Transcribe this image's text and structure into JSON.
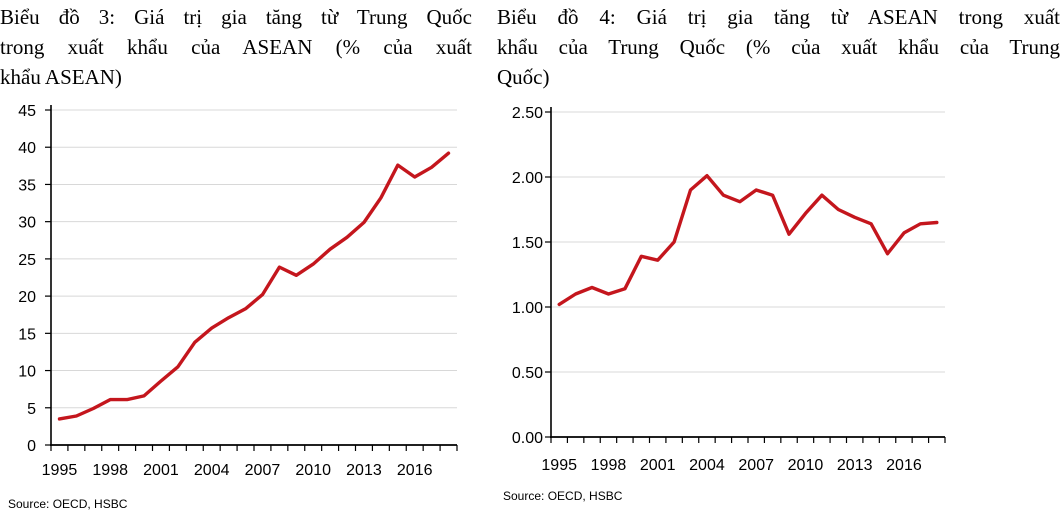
{
  "page": {
    "background": "#ffffff"
  },
  "chart_data": [
    {
      "type": "line",
      "title": "Biểu đồ 3: Giá trị gia tăng từ Trung Quốc trong xuất khẩu của ASEAN (% của xuất khẩu ASEAN)",
      "title_lines": [
        "Biểu đồ 3: Giá trị gia tăng từ Trung Quốc",
        "trong xuất khẩu của ASEAN (% của xuất",
        "khẩu ASEAN)"
      ],
      "source": "Source: OECD, HSBC",
      "x": [
        1995,
        1996,
        1997,
        1998,
        1999,
        2000,
        2001,
        2002,
        2003,
        2004,
        2005,
        2006,
        2007,
        2008,
        2009,
        2010,
        2011,
        2012,
        2013,
        2014,
        2015,
        2016,
        2017,
        2018
      ],
      "series": [
        {
          "name": "",
          "values": [
            3.5,
            3.9,
            4.9,
            6.1,
            6.1,
            6.6,
            8.6,
            10.5,
            13.8,
            15.7,
            17.1,
            18.3,
            20.2,
            23.9,
            22.8,
            24.3,
            26.3,
            27.9,
            29.9,
            33.2,
            37.6,
            36.0,
            37.3,
            39.2
          ]
        }
      ],
      "xlabel": "",
      "ylabel": "",
      "ylim": [
        0,
        45
      ],
      "ytick_step": 5,
      "ytick_labels": [
        "45",
        "40",
        "35",
        "30",
        "25",
        "20",
        "15",
        "10",
        "5",
        "0"
      ],
      "xtick_labels": [
        "1995",
        "1998",
        "2001",
        "2004",
        "2007",
        "2010",
        "2013",
        "2016"
      ],
      "grid": true,
      "legend": false,
      "line_color": "#C4161D",
      "grid_color": "#D8D8D8",
      "axis_color": "#000000"
    },
    {
      "type": "line",
      "title": "Biểu đồ 4: Giá trị gia tăng từ ASEAN trong xuất khẩu của Trung Quốc (% của xuất khẩu của Trung Quốc)",
      "title_lines": [
        "Biểu đồ 4: Giá trị gia tăng từ ASEAN trong xuất",
        "khẩu của Trung Quốc (% của xuất khẩu của Trung",
        "Quốc)"
      ],
      "source": "Source: OECD, HSBC",
      "x": [
        1995,
        1996,
        1997,
        1998,
        1999,
        2000,
        2001,
        2002,
        2003,
        2004,
        2005,
        2006,
        2007,
        2008,
        2009,
        2010,
        2011,
        2012,
        2013,
        2014,
        2015,
        2016,
        2017,
        2018
      ],
      "series": [
        {
          "name": "",
          "values": [
            1.02,
            1.1,
            1.15,
            1.1,
            1.14,
            1.39,
            1.36,
            1.5,
            1.9,
            2.01,
            1.86,
            1.81,
            1.9,
            1.86,
            1.56,
            1.72,
            1.86,
            1.75,
            1.69,
            1.64,
            1.41,
            1.57,
            1.64,
            1.65
          ]
        }
      ],
      "xlabel": "",
      "ylabel": "",
      "ylim": [
        0,
        2.5
      ],
      "ytick_step": 0.5,
      "ytick_labels": [
        "2.50",
        "2.00",
        "1.50",
        "1.00",
        "0.50",
        "0.00"
      ],
      "xtick_labels": [
        "1995",
        "1998",
        "2001",
        "2004",
        "2007",
        "2010",
        "2013",
        "2016"
      ],
      "grid": true,
      "legend": false,
      "line_color": "#C4161D",
      "grid_color": "#D8D8D8",
      "axis_color": "#000000"
    }
  ]
}
